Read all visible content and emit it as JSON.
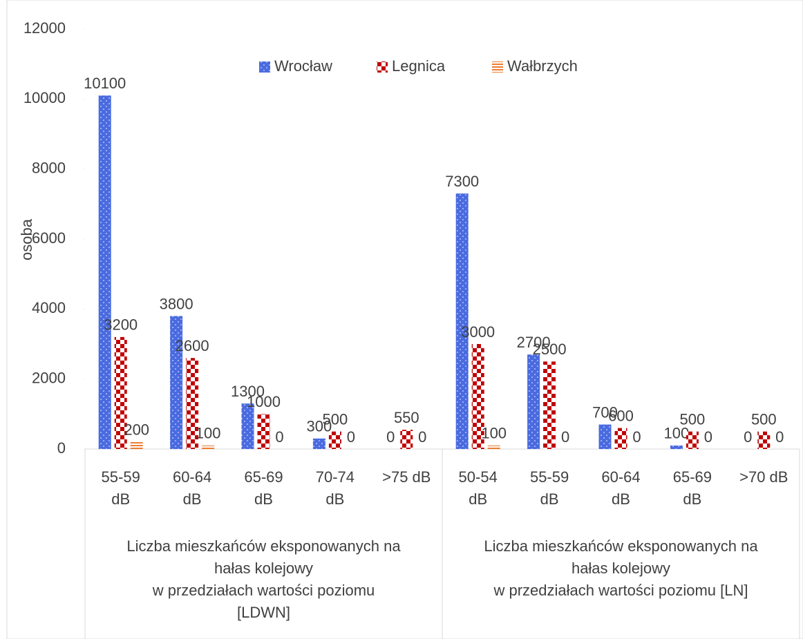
{
  "chart_data": {
    "type": "bar",
    "y_label": "osoba",
    "categories": [
      "55-59 dB",
      "60-64 dB",
      "65-69 dB",
      "70-74 dB",
      ">75 dB",
      "50-54 dB",
      "55-59 dB",
      "60-64 dB",
      "65-69 dB",
      ">70 dB"
    ],
    "groups": [
      {
        "label": "Liczba mieszkańców eksponowanych na\nhałas kolejowy\nw przedziałach wartości poziomu\n[LDWN]",
        "span": 5
      },
      {
        "label": "Liczba mieszkańców eksponowanych na\nhałas kolejowy\nw przedziałach wartości poziomu [LN]",
        "span": 5
      }
    ],
    "series": [
      {
        "name": "Wrocław",
        "color": "#4a6be0",
        "pattern": "dots",
        "values": [
          10100,
          3800,
          1300,
          300,
          0,
          7300,
          2700,
          700,
          100,
          0
        ]
      },
      {
        "name": "Legnica",
        "color": "#c00000",
        "pattern": "checker",
        "values": [
          3200,
          2600,
          1000,
          500,
          550,
          3000,
          2500,
          600,
          500,
          500
        ]
      },
      {
        "name": "Wałbrzych",
        "color": "#ed7d31",
        "pattern": "horizontal",
        "values": [
          200,
          100,
          0,
          0,
          0,
          100,
          0,
          0,
          0,
          0
        ]
      }
    ],
    "ylim": [
      0,
      12000
    ],
    "yticks": [
      0,
      2000,
      4000,
      6000,
      8000,
      10000,
      12000
    ],
    "grid": false,
    "legend": "top"
  }
}
